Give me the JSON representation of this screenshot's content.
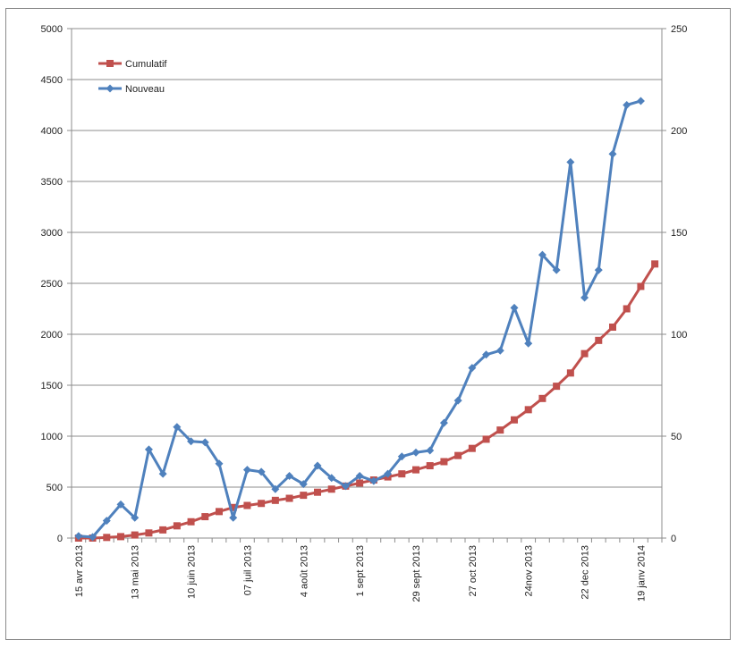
{
  "chart_data": {
    "type": "line",
    "title": "",
    "xlabel": "",
    "ylabel": "",
    "y2label": "",
    "legend_position": "top-left",
    "grid": true,
    "ylim": [
      0,
      5000
    ],
    "y2lim": [
      0,
      250
    ],
    "yticks": [
      0,
      500,
      1000,
      1500,
      2000,
      2500,
      3000,
      3500,
      4000,
      4500,
      5000
    ],
    "y2ticks": [
      0,
      50,
      100,
      150,
      200,
      250
    ],
    "x_tick_labels": [
      "15 avr 2013",
      "13 mai 2013",
      "10 juin 2013",
      "07 juil 2013",
      "4 août 2013",
      "1 sept 2013",
      "29 sept 2013",
      "27 oct 2013",
      "24nov 2013",
      "22 dec 2013",
      "19 janv 2014"
    ],
    "x_tick_index": [
      0,
      4,
      8,
      12,
      16,
      20,
      24,
      28,
      32,
      36,
      40
    ],
    "series": [
      {
        "name": "Cumulatif",
        "axis": "right",
        "color": "#c0504d",
        "marker": "square",
        "values": [
          0,
          0,
          0.3,
          0.7,
          1.5,
          2.5,
          4,
          6,
          8,
          10.5,
          13,
          15,
          16,
          17,
          18.5,
          19.5,
          21,
          22.5,
          24,
          25.5,
          27,
          28.5,
          30,
          31.5,
          33.5,
          35.5,
          37.5,
          40.5,
          44,
          48.5,
          53,
          58,
          63,
          68.5,
          74.5,
          81,
          90.5,
          97,
          103.5,
          112.5,
          123.5,
          134.5
        ]
      },
      {
        "name": "Nouveau",
        "axis": "right",
        "color": "#4f81bd",
        "marker": "diamond",
        "values": [
          1,
          0.5,
          8.5,
          16.5,
          10,
          43.5,
          31.5,
          54.5,
          47.5,
          47,
          36.5,
          10,
          33.5,
          32.5,
          24,
          30.5,
          26.5,
          35.5,
          29.5,
          25.5,
          30.5,
          28,
          31.5,
          40,
          42,
          43,
          56.5,
          67.5,
          83.5,
          90,
          92,
          113,
          95.5,
          139,
          131.5,
          184.5,
          118,
          131.5,
          188.5,
          212.5,
          214.5
        ]
      }
    ]
  }
}
